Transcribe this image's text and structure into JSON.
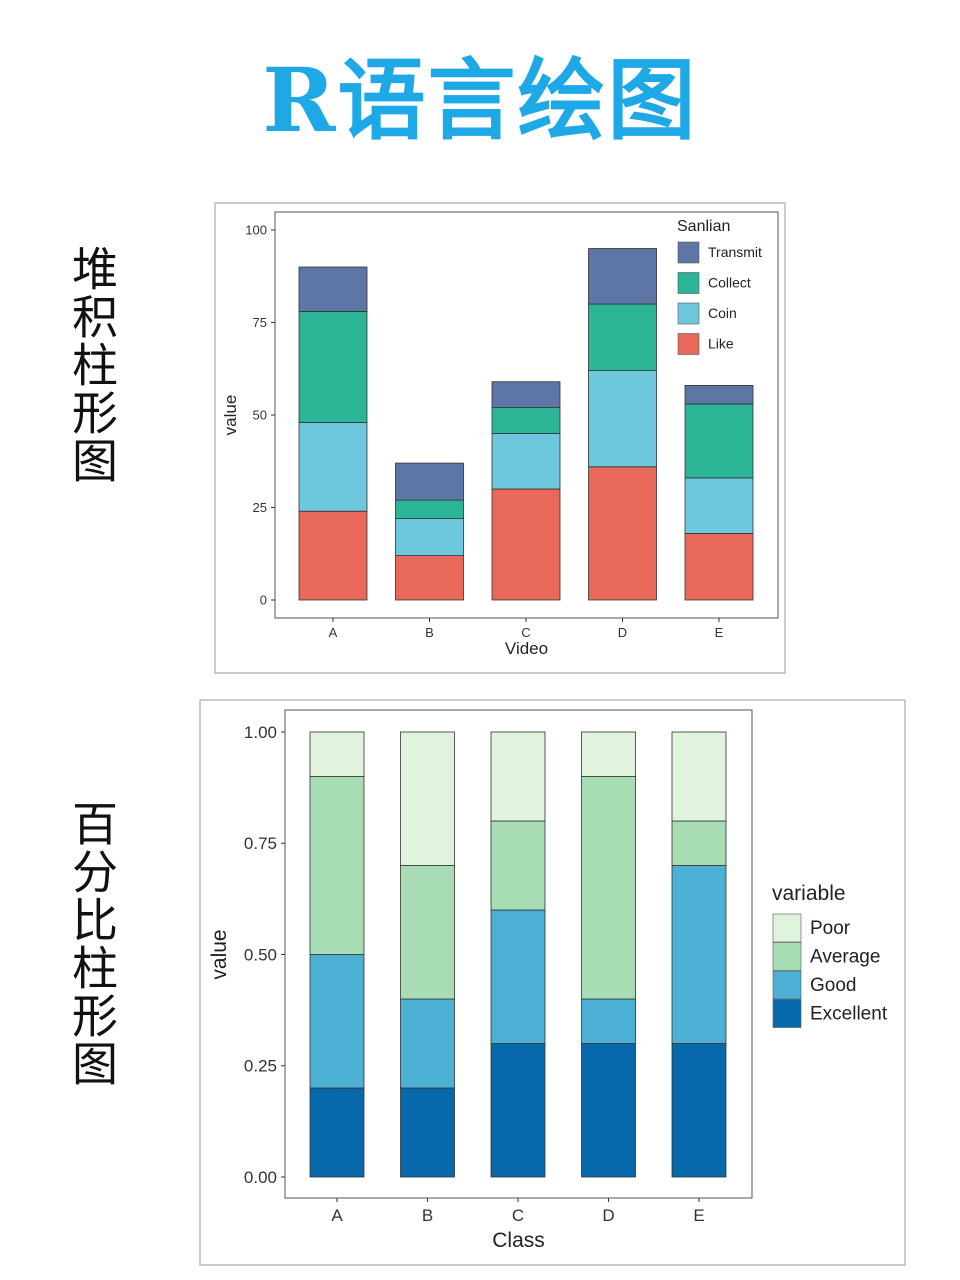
{
  "page_title": "R语言绘图",
  "side_labels": [
    "堆积柱形图",
    "百分比柱形图"
  ],
  "chart_data": [
    {
      "type": "bar",
      "stacked": true,
      "xlabel": "Video",
      "ylabel": "value",
      "categories": [
        "A",
        "B",
        "C",
        "D",
        "E"
      ],
      "ylim": [
        0,
        100
      ],
      "yticks": [
        "0",
        "25",
        "50",
        "75",
        "100"
      ],
      "legend_title": "Sanlian",
      "legend_position": "top-right inside",
      "grid": false,
      "series": [
        {
          "name": "Like",
          "color": "#e8695a",
          "values": [
            24,
            12,
            30,
            36,
            18
          ]
        },
        {
          "name": "Coin",
          "color": "#6ec8dd",
          "values": [
            24,
            10,
            15,
            26,
            15
          ]
        },
        {
          "name": "Collect",
          "color": "#2bb496",
          "values": [
            30,
            5,
            7,
            18,
            20
          ]
        },
        {
          "name": "Transmit",
          "color": "#5e76a5",
          "values": [
            12,
            10,
            7,
            15,
            5
          ]
        }
      ],
      "legend_order": [
        "Transmit",
        "Collect",
        "Coin",
        "Like"
      ]
    },
    {
      "type": "bar",
      "stacked": true,
      "percent": true,
      "xlabel": "Class",
      "ylabel": "value",
      "categories": [
        "A",
        "B",
        "C",
        "D",
        "E"
      ],
      "ylim": [
        0,
        1
      ],
      "yticks": [
        "0.00",
        "0.25",
        "0.50",
        "0.75",
        "1.00"
      ],
      "legend_title": "variable",
      "legend_position": "right",
      "grid": false,
      "series": [
        {
          "name": "Excellent",
          "color": "#0868ac",
          "values": [
            0.2,
            0.2,
            0.3,
            0.3,
            0.3
          ]
        },
        {
          "name": "Good",
          "color": "#4bb0d3",
          "values": [
            0.3,
            0.2,
            0.3,
            0.1,
            0.4
          ]
        },
        {
          "name": "Average",
          "color": "#a8dcb5",
          "values": [
            0.4,
            0.3,
            0.2,
            0.5,
            0.1
          ]
        },
        {
          "name": "Poor",
          "color": "#e0f3dc",
          "values": [
            0.1,
            0.3,
            0.2,
            0.1,
            0.2
          ]
        }
      ],
      "legend_order": [
        "Poor",
        "Average",
        "Good",
        "Excellent"
      ]
    }
  ]
}
